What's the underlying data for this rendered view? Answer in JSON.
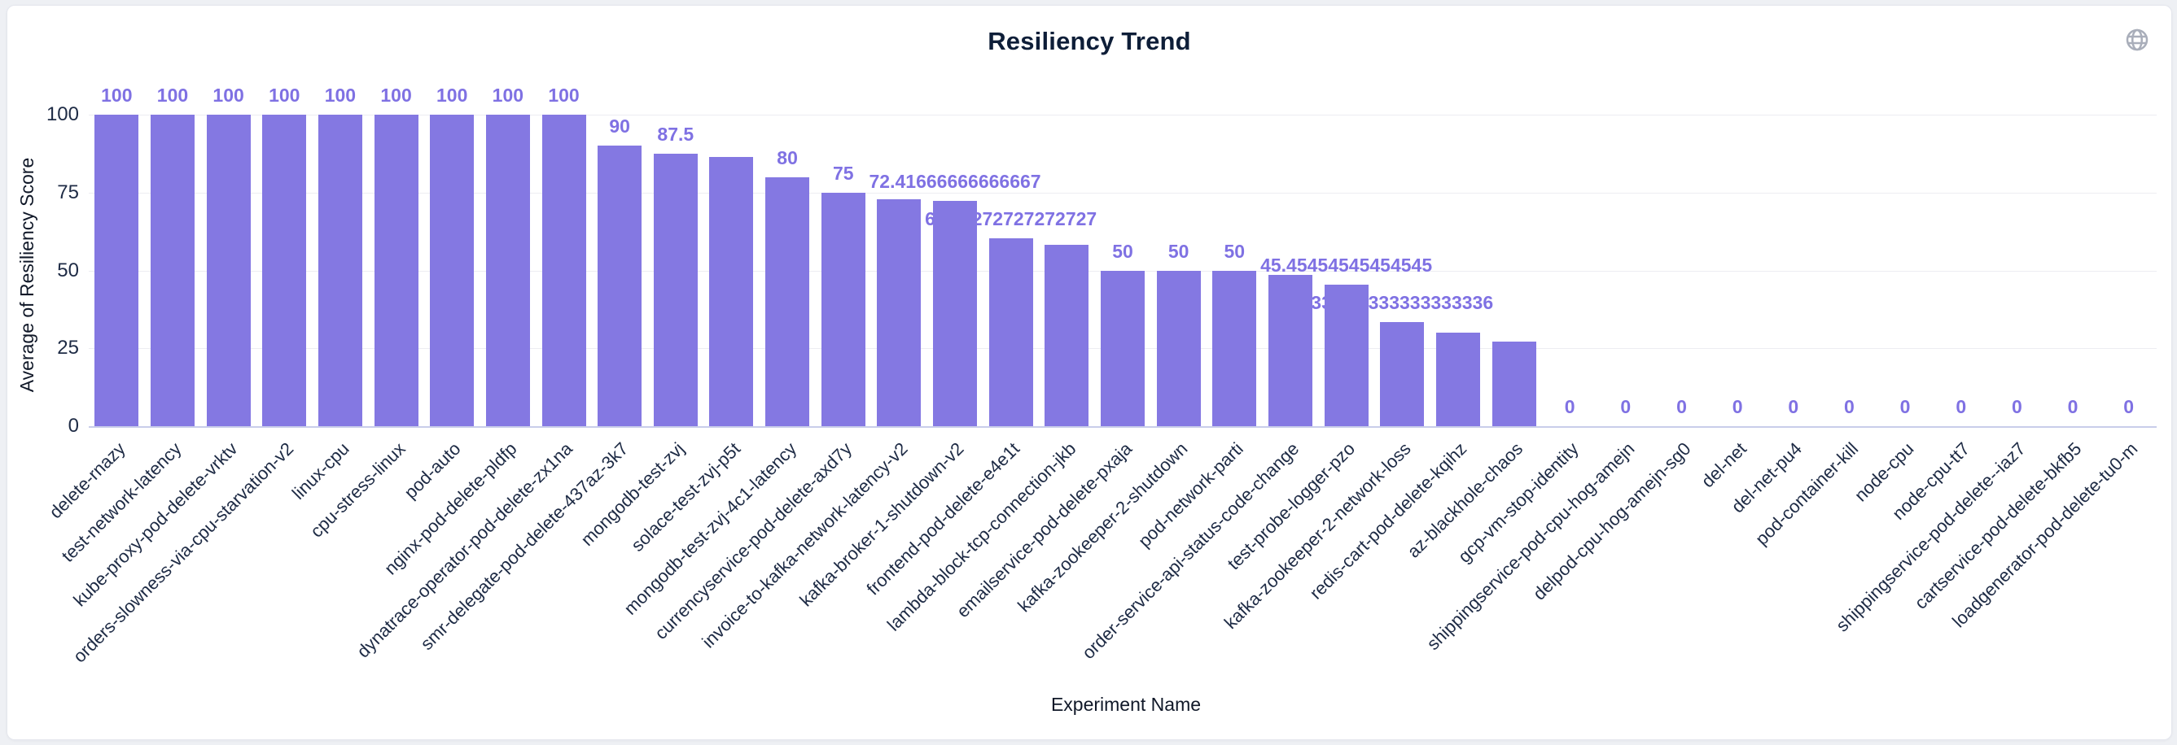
{
  "header": {
    "title": "Resiliency Trend",
    "globe_icon": "globe-icon"
  },
  "chart_data": {
    "type": "bar",
    "title": "Resiliency Trend",
    "xlabel": "Experiment Name",
    "ylabel": "Average of Resiliency Score",
    "ylim": [
      0,
      100
    ],
    "yticks": [
      0,
      25,
      50,
      75,
      100
    ],
    "grid": true,
    "legend": false,
    "bar_color": "#8478e2",
    "value_label_color": "#7f71e3",
    "categories": [
      "delete-rnazy",
      "test-network-latency",
      "kube-proxy-pod-delete-vrktv",
      "orders-slowness-via-cpu-starvation-v2",
      "linux-cpu",
      "cpu-stress-linux",
      "pod-auto",
      "nginx-pod-delete-pldfp",
      "dynatrace-operator-pod-delete-zx1na",
      "smr-delegate-pod-delete-437az-3k7",
      "mongodb-test-zvj",
      "solace-test-zvj-p5t",
      "mongodb-test-zvj-4c1-latency",
      "currencyservice-pod-delete-axd7y",
      "invoice-to-kafka-network-latency-v2",
      "kafka-broker-1-shutdown-v2",
      "frontend-pod-delete-e4e1t",
      "lambda-block-tcp-connection-jkb",
      "emailservice-pod-delete-pxaja",
      "kafka-zookeeper-2-shutdown",
      "pod-network-parti",
      "order-service-api-status-code-change",
      "test-probe-logger-pzo",
      "kafka-zookeeper-2-network-loss",
      "redis-cart-pod-delete-kqihz",
      "az-blackhole-chaos",
      "gcp-vm-stop-identity",
      "shippingservice-pod-cpu-hog-amejn",
      "delpod-cpu-hog-amejn-sg0",
      "del-net",
      "del-net-pu4",
      "pod-container-kill",
      "node-cpu",
      "node-cpu-tt7",
      "shippingservice-pod-delete--iaz7",
      "cartservice-pod-delete-bkfb5",
      "loadgenerator-pod-delete-tu0-m"
    ],
    "values": [
      100,
      100,
      100,
      100,
      100,
      100,
      100,
      100,
      100,
      90,
      87.5,
      86.4,
      80,
      75,
      72.9,
      72.41666666666667,
      60.27272727272727,
      58.2,
      50,
      50,
      50,
      48.6,
      45.45454545454545,
      33.333333333333336,
      30,
      27.2,
      0,
      0,
      0,
      0,
      0,
      0,
      0,
      0,
      0,
      0,
      0
    ],
    "value_labels": [
      "100",
      "100",
      "100",
      "100",
      "100",
      "100",
      "100",
      "100",
      "100",
      "90",
      "87.5",
      null,
      "80",
      "75",
      null,
      "72.41666666666667",
      "60.27272727272727",
      null,
      "50",
      "50",
      "50",
      null,
      "45.45454545454545",
      "33.333333333333336",
      null,
      null,
      "0",
      "0",
      "0",
      "0",
      "0",
      "0",
      "0",
      "0",
      "0",
      "0",
      "0"
    ]
  }
}
